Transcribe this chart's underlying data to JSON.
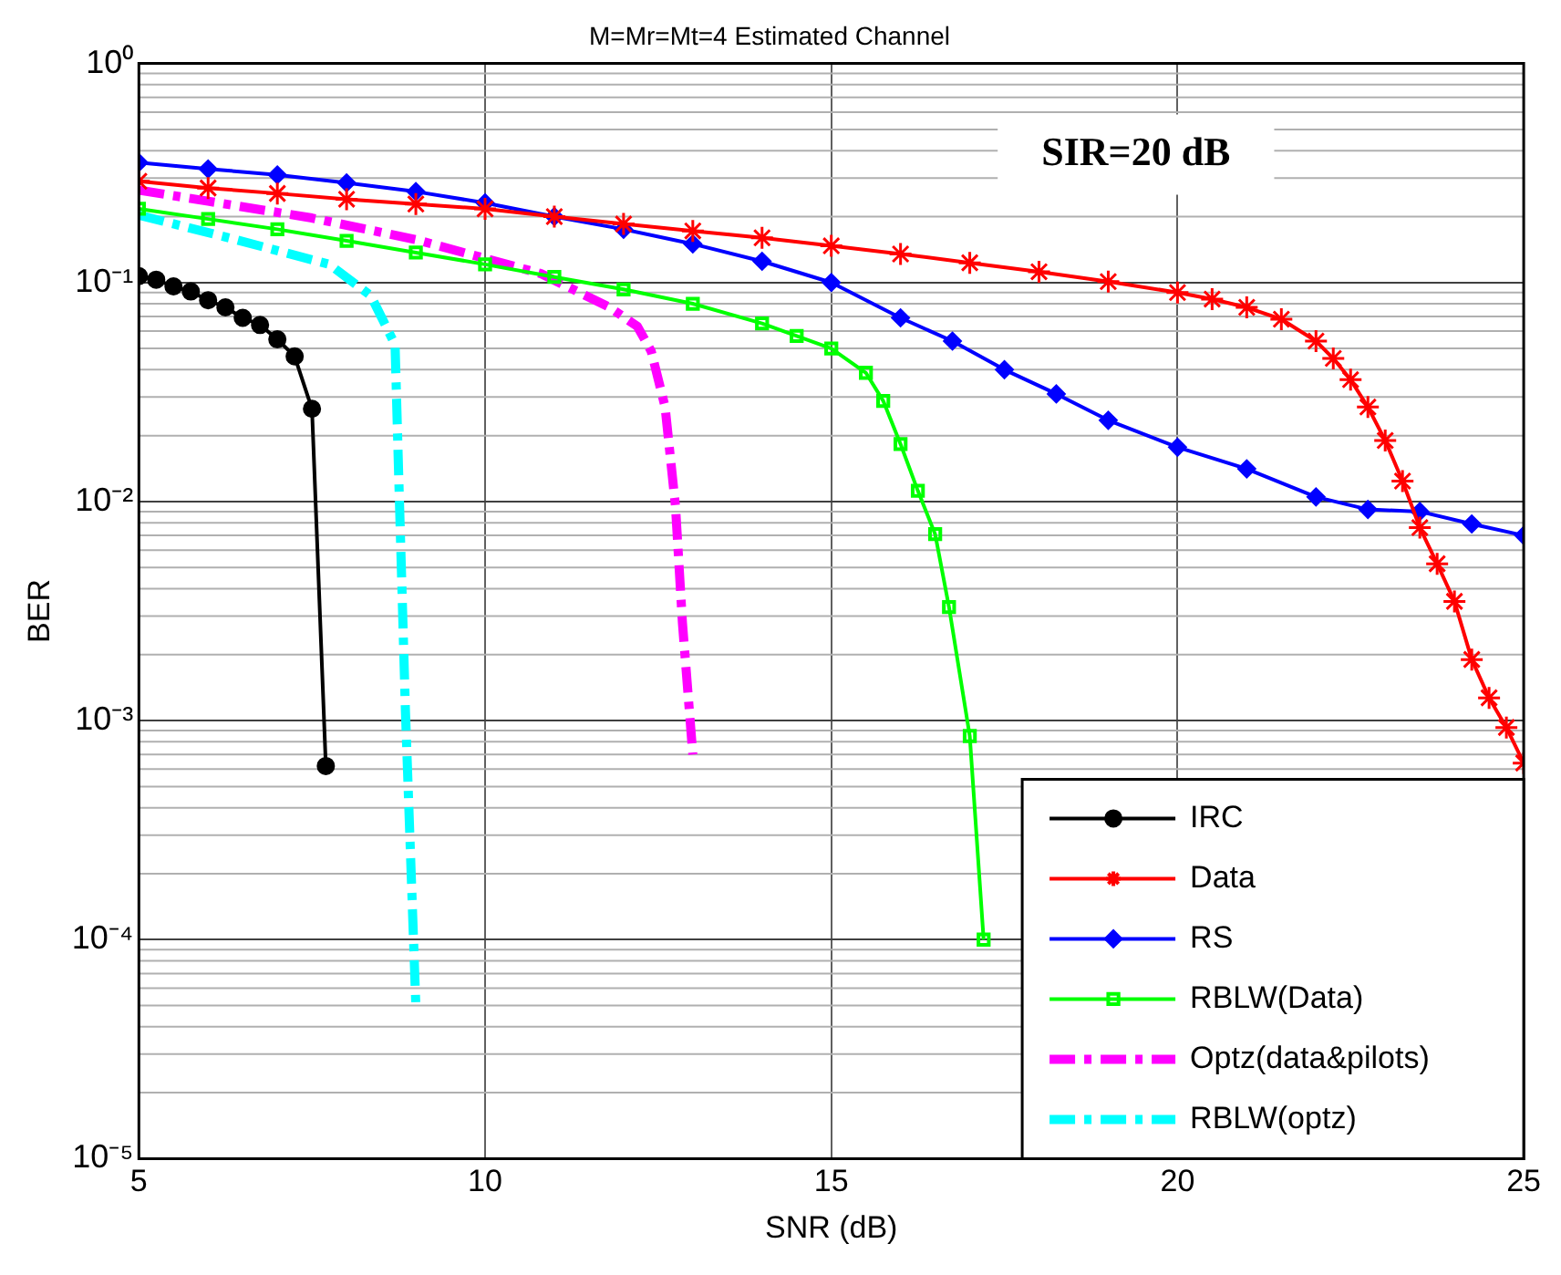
{
  "chart_data": {
    "type": "line",
    "title": "M=Mr=Mt=4 Estimated Channel",
    "xlabel": "SNR (dB)",
    "ylabel": "BER",
    "log": "y",
    "grid": true,
    "legend": "bottom right",
    "xlim": [
      5,
      25
    ],
    "xticks": [
      5,
      10,
      15,
      20,
      25
    ],
    "ylim": [
      1e-05,
      1
    ],
    "yticks": [
      {
        "value": 1e-05,
        "label": "10⁻⁵"
      },
      {
        "value": 0.0001,
        "label": "10⁻⁴"
      },
      {
        "value": 0.001,
        "label": "10⁻³"
      },
      {
        "value": 0.01,
        "label": "10⁻²"
      },
      {
        "value": 0.1,
        "label": "10⁻¹"
      },
      {
        "value": 1,
        "label": "10⁰"
      }
    ],
    "annotations": [
      "SIR=20 dB"
    ],
    "series": [
      {
        "name": "IRC",
        "color": "#000000",
        "marker": "circle",
        "line_style": "solid",
        "x": [
          5,
          5.25,
          5.5,
          5.75,
          6,
          6.25,
          6.5,
          6.75,
          7,
          7.25,
          7.5,
          7.7
        ],
        "values": [
          0.107,
          0.103,
          0.096,
          0.091,
          0.083,
          0.077,
          0.069,
          0.064,
          0.055,
          0.046,
          0.0265,
          0.00062
        ]
      },
      {
        "name": "Data",
        "color": "#ff0000",
        "marker": "cross",
        "line_style": "solid",
        "x": [
          5,
          6,
          7,
          8,
          9,
          10,
          11,
          12,
          13,
          14,
          15,
          16,
          17,
          18,
          19,
          20,
          20.5,
          21,
          21.5,
          22,
          22.25,
          22.5,
          22.75,
          23,
          23.25,
          23.5,
          23.75,
          24,
          24.25,
          24.5,
          24.75,
          25
        ],
        "values": [
          0.29,
          0.27,
          0.255,
          0.24,
          0.228,
          0.217,
          0.2,
          0.185,
          0.172,
          0.16,
          0.147,
          0.135,
          0.123,
          0.112,
          0.101,
          0.09,
          0.084,
          0.077,
          0.068,
          0.054,
          0.045,
          0.036,
          0.027,
          0.019,
          0.0124,
          0.0076,
          0.0052,
          0.0035,
          0.0019,
          0.00127,
          0.00093,
          0.00064
        ]
      },
      {
        "name": "RS",
        "color": "#0000ff",
        "marker": "diamond",
        "line_style": "solid",
        "x": [
          5,
          6,
          7,
          8,
          9,
          10,
          11,
          12,
          13,
          14,
          15,
          16,
          16.75,
          17.5,
          18.25,
          19,
          20,
          21,
          22,
          22.75,
          23.5,
          24.25,
          25
        ],
        "values": [
          0.353,
          0.33,
          0.31,
          0.285,
          0.26,
          0.231,
          0.2,
          0.175,
          0.15,
          0.125,
          0.1,
          0.069,
          0.054,
          0.04,
          0.031,
          0.0235,
          0.0177,
          0.0141,
          0.0105,
          0.0092,
          0.009,
          0.0079,
          0.007
        ]
      },
      {
        "name": "RBLW(Data)",
        "color": "#00ff00",
        "marker": "square",
        "line_style": "solid",
        "x": [
          5,
          6,
          7,
          8,
          9,
          10,
          11,
          12,
          13,
          14,
          14.5,
          15,
          15.5,
          15.75,
          16,
          16.25,
          16.5,
          16.7,
          17,
          17.2
        ],
        "values": [
          0.217,
          0.195,
          0.175,
          0.155,
          0.137,
          0.121,
          0.106,
          0.093,
          0.08,
          0.065,
          0.057,
          0.05,
          0.0387,
          0.0288,
          0.0183,
          0.0112,
          0.0071,
          0.0033,
          0.00085,
          0.0001
        ]
      },
      {
        "name": "Optz(data&pilots)",
        "color": "#ff00ff",
        "marker": "none",
        "line_style": "dashed",
        "x": [
          5,
          6,
          7.5,
          9,
          10.8,
          11.8,
          12.2,
          12.4,
          12.6,
          12.75,
          12.85,
          13
        ],
        "values": [
          0.264,
          0.235,
          0.197,
          0.157,
          0.11,
          0.077,
          0.063,
          0.0485,
          0.027,
          0.0095,
          0.0028,
          0.0007
        ]
      },
      {
        "name": "RBLW(optz)",
        "color": "#00ffff",
        "marker": "none",
        "line_style": "dashed",
        "x": [
          5,
          6.4,
          7.75,
          8.35,
          8.7,
          8.75,
          8.85,
          9
        ],
        "values": [
          0.203,
          0.157,
          0.121,
          0.087,
          0.052,
          0.014,
          0.0011,
          5e-05
        ]
      }
    ]
  }
}
